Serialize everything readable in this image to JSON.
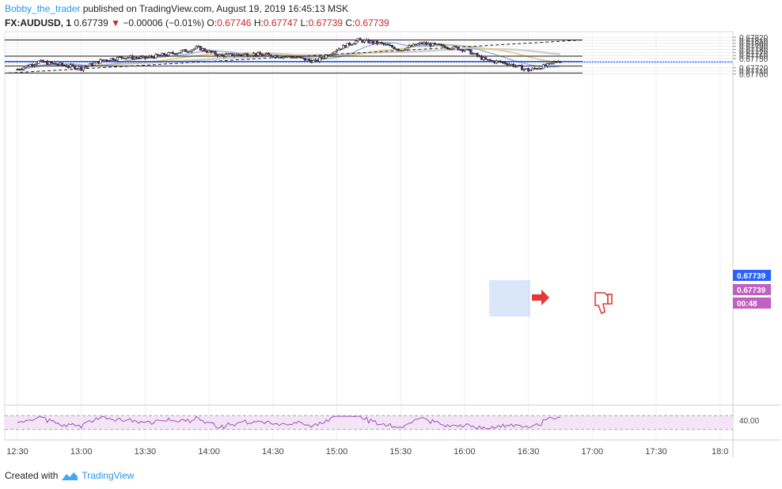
{
  "header": {
    "author": "Bobby_the_trader",
    "published_text": "published on TradingView.com, August 19, 2019 16:45:13 MSK",
    "symbol": "FX:AUDUSD, 1",
    "last": "0.67739",
    "change": "−0.00006 (−0.01%)",
    "o_label": "O:",
    "o": "0.67746",
    "h_label": "H:",
    "h": "0.67747",
    "l_label": "L:",
    "l": "0.67739",
    "c_label": "C:",
    "c": "0.67739"
  },
  "footer": {
    "created_with": "Created with",
    "brand": "TradingView"
  },
  "colors": {
    "up": "#ffffff",
    "down": "#7b1fa2",
    "ma_blue": "#90b4e6",
    "ma_gold": "#e8c77a",
    "ma_gray": "#cfcfcf",
    "rsi": "#a050c0",
    "price_line": "#2962ff",
    "arrow": "#e53935"
  },
  "chart_data": {
    "type": "candlestick",
    "interval": "1 minute",
    "y_ticks": [
      "0.67820",
      "0.67810",
      "0.67800",
      "0.67790",
      "0.67780",
      "0.67770",
      "0.67760",
      "0.67750",
      "0.67720",
      "0.67710",
      "0.67700"
    ],
    "x_ticks": [
      "12:30",
      "13:00",
      "13:30",
      "14:00",
      "14:30",
      "15:00",
      "15:30",
      "16:00",
      "16:30",
      "17:00",
      "17:30",
      "18:0"
    ],
    "ylim": [
      0.67695,
      0.67822
    ],
    "price_labels": [
      {
        "text": "0.67739",
        "style": "blue"
      },
      {
        "text": "0.67739",
        "style": "purple"
      },
      {
        "text": "00:48",
        "style": "purple"
      }
    ],
    "horizontal_levels": [
      0.67811,
      0.67758,
      0.67741,
      0.67726,
      0.67703
    ],
    "trendline": {
      "from": [
        "12:26",
        0.67703
      ],
      "to": [
        "16:56",
        0.67811
      ]
    },
    "rsi": {
      "label": "40.00",
      "levels": [
        70,
        30
      ]
    },
    "close_series_approx": [
      [
        "12:30",
        0.67715
      ],
      [
        "12:40",
        0.6774
      ],
      [
        "12:50",
        0.6773
      ],
      [
        "13:00",
        0.67718
      ],
      [
        "13:10",
        0.67745
      ],
      [
        "13:20",
        0.67755
      ],
      [
        "13:30",
        0.67752
      ],
      [
        "13:45",
        0.6777
      ],
      [
        "13:55",
        0.67785
      ],
      [
        "14:05",
        0.6776
      ],
      [
        "14:20",
        0.67765
      ],
      [
        "14:40",
        0.67755
      ],
      [
        "14:50",
        0.6774
      ],
      [
        "15:00",
        0.6778
      ],
      [
        "15:10",
        0.6781
      ],
      [
        "15:20",
        0.678
      ],
      [
        "15:30",
        0.6778
      ],
      [
        "15:40",
        0.678
      ],
      [
        "15:50",
        0.6779
      ],
      [
        "16:00",
        0.6778
      ],
      [
        "16:10",
        0.67745
      ],
      [
        "16:20",
        0.67735
      ],
      [
        "16:30",
        0.67712
      ],
      [
        "16:40",
        0.6773
      ],
      [
        "16:44",
        0.67745
      ],
      [
        "16:45",
        0.67739
      ]
    ]
  }
}
